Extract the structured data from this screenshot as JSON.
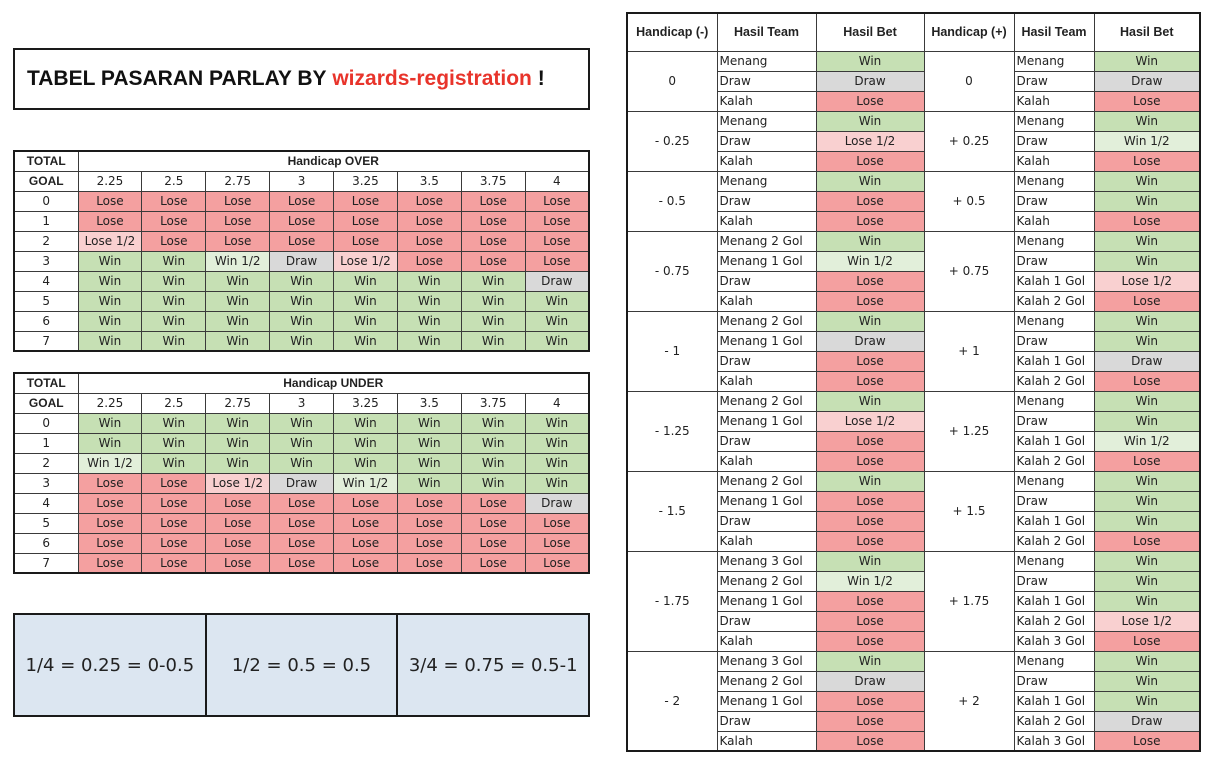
{
  "title": {
    "prefix": "TABEL PASARAN PARLAY BY",
    "brand": "wizards-registration",
    "suffix": "!"
  },
  "colors": {
    "win": "#c6e0b4",
    "lose": "#f4a0a0",
    "draw": "#d9d9d9",
    "win_half": "#e2efda",
    "lose_half": "#f9d0d0",
    "brand": "#e8342b"
  },
  "over_table": {
    "corner_top": "TOTAL",
    "corner_bottom": "GOAL",
    "header": "Handicap OVER",
    "columns": [
      "2.25",
      "2.5",
      "2.75",
      "3",
      "3.25",
      "3.5",
      "3.75",
      "4"
    ],
    "rows": [
      {
        "goal": "0",
        "cells": [
          "Lose",
          "Lose",
          "Lose",
          "Lose",
          "Lose",
          "Lose",
          "Lose",
          "Lose"
        ]
      },
      {
        "goal": "1",
        "cells": [
          "Lose",
          "Lose",
          "Lose",
          "Lose",
          "Lose",
          "Lose",
          "Lose",
          "Lose"
        ]
      },
      {
        "goal": "2",
        "cells": [
          "Lose 1/2",
          "Lose",
          "Lose",
          "Lose",
          "Lose",
          "Lose",
          "Lose",
          "Lose"
        ]
      },
      {
        "goal": "3",
        "cells": [
          "Win",
          "Win",
          "Win 1/2",
          "Draw",
          "Lose 1/2",
          "Lose",
          "Lose",
          "Lose"
        ]
      },
      {
        "goal": "4",
        "cells": [
          "Win",
          "Win",
          "Win",
          "Win",
          "Win",
          "Win",
          "Win",
          "Draw"
        ]
      },
      {
        "goal": "5",
        "cells": [
          "Win",
          "Win",
          "Win",
          "Win",
          "Win",
          "Win",
          "Win",
          "Win"
        ]
      },
      {
        "goal": "6",
        "cells": [
          "Win",
          "Win",
          "Win",
          "Win",
          "Win",
          "Win",
          "Win",
          "Win"
        ]
      },
      {
        "goal": "7",
        "cells": [
          "Win",
          "Win",
          "Win",
          "Win",
          "Win",
          "Win",
          "Win",
          "Win"
        ]
      }
    ]
  },
  "under_table": {
    "corner_top": "TOTAL",
    "corner_bottom": "GOAL",
    "header": "Handicap UNDER",
    "columns": [
      "2.25",
      "2.5",
      "2.75",
      "3",
      "3.25",
      "3.5",
      "3.75",
      "4"
    ],
    "rows": [
      {
        "goal": "0",
        "cells": [
          "Win",
          "Win",
          "Win",
          "Win",
          "Win",
          "Win",
          "Win",
          "Win"
        ]
      },
      {
        "goal": "1",
        "cells": [
          "Win",
          "Win",
          "Win",
          "Win",
          "Win",
          "Win",
          "Win",
          "Win"
        ]
      },
      {
        "goal": "2",
        "cells": [
          "Win 1/2",
          "Win",
          "Win",
          "Win",
          "Win",
          "Win",
          "Win",
          "Win"
        ]
      },
      {
        "goal": "3",
        "cells": [
          "Lose",
          "Lose",
          "Lose 1/2",
          "Draw",
          "Win 1/2",
          "Win",
          "Win",
          "Win"
        ]
      },
      {
        "goal": "4",
        "cells": [
          "Lose",
          "Lose",
          "Lose",
          "Lose",
          "Lose",
          "Lose",
          "Lose",
          "Draw"
        ]
      },
      {
        "goal": "5",
        "cells": [
          "Lose",
          "Lose",
          "Lose",
          "Lose",
          "Lose",
          "Lose",
          "Lose",
          "Lose"
        ]
      },
      {
        "goal": "6",
        "cells": [
          "Lose",
          "Lose",
          "Lose",
          "Lose",
          "Lose",
          "Lose",
          "Lose",
          "Lose"
        ]
      },
      {
        "goal": "7",
        "cells": [
          "Lose",
          "Lose",
          "Lose",
          "Lose",
          "Lose",
          "Lose",
          "Lose",
          "Lose"
        ]
      }
    ]
  },
  "ratios": [
    "1/4 = 0.25 = 0-0.5",
    "1/2 = 0.5 = 0.5",
    "3/4 = 0.75 = 0.5-1"
  ],
  "handicap_table": {
    "headers": [
      "Handicap (-)",
      "Hasil Team",
      "Hasil Bet",
      "Handicap (+)",
      "Hasil Team",
      "Hasil Bet"
    ],
    "groups": [
      {
        "minus": "0",
        "plus": "0",
        "rows": [
          {
            "lt": "Menang",
            "lb": "Win",
            "rt": "Menang",
            "rb": "Win"
          },
          {
            "lt": "Draw",
            "lb": "Draw",
            "rt": "Draw",
            "rb": "Draw"
          },
          {
            "lt": "Kalah",
            "lb": "Lose",
            "rt": "Kalah",
            "rb": "Lose"
          }
        ]
      },
      {
        "minus": "- 0.25",
        "plus": "+ 0.25",
        "rows": [
          {
            "lt": "Menang",
            "lb": "Win",
            "rt": "Menang",
            "rb": "Win"
          },
          {
            "lt": "Draw",
            "lb": "Lose 1/2",
            "rt": "Draw",
            "rb": "Win 1/2"
          },
          {
            "lt": "Kalah",
            "lb": "Lose",
            "rt": "Kalah",
            "rb": "Lose"
          }
        ]
      },
      {
        "minus": "- 0.5",
        "plus": "+ 0.5",
        "rows": [
          {
            "lt": "Menang",
            "lb": "Win",
            "rt": "Menang",
            "rb": "Win"
          },
          {
            "lt": "Draw",
            "lb": "Lose",
            "rt": "Draw",
            "rb": "Win"
          },
          {
            "lt": "Kalah",
            "lb": "Lose",
            "rt": "Kalah",
            "rb": "Lose"
          }
        ]
      },
      {
        "minus": "- 0.75",
        "plus": "+ 0.75",
        "rows": [
          {
            "lt": "Menang 2 Gol",
            "lb": "Win",
            "rt": "Menang",
            "rb": "Win"
          },
          {
            "lt": "Menang 1 Gol",
            "lb": "Win 1/2",
            "rt": "Draw",
            "rb": "Win"
          },
          {
            "lt": "Draw",
            "lb": "Lose",
            "rt": "Kalah 1 Gol",
            "rb": "Lose 1/2"
          },
          {
            "lt": "Kalah",
            "lb": "Lose",
            "rt": "Kalah 2 Gol",
            "rb": "Lose"
          }
        ]
      },
      {
        "minus": "- 1",
        "plus": "+ 1",
        "rows": [
          {
            "lt": "Menang 2 Gol",
            "lb": "Win",
            "rt": "Menang",
            "rb": "Win"
          },
          {
            "lt": "Menang 1 Gol",
            "lb": "Draw",
            "rt": "Draw",
            "rb": "Win"
          },
          {
            "lt": "Draw",
            "lb": "Lose",
            "rt": "Kalah 1 Gol",
            "rb": "Draw"
          },
          {
            "lt": "Kalah",
            "lb": "Lose",
            "rt": "Kalah 2 Gol",
            "rb": "Lose"
          }
        ]
      },
      {
        "minus": "- 1.25",
        "plus": "+ 1.25",
        "rows": [
          {
            "lt": "Menang 2 Gol",
            "lb": "Win",
            "rt": "Menang",
            "rb": "Win"
          },
          {
            "lt": "Menang 1 Gol",
            "lb": "Lose 1/2",
            "rt": "Draw",
            "rb": "Win"
          },
          {
            "lt": "Draw",
            "lb": "Lose",
            "rt": "Kalah 1 Gol",
            "rb": "Win 1/2"
          },
          {
            "lt": "Kalah",
            "lb": "Lose",
            "rt": "Kalah 2 Gol",
            "rb": "Lose"
          }
        ]
      },
      {
        "minus": "- 1.5",
        "plus": "+ 1.5",
        "rows": [
          {
            "lt": "Menang 2 Gol",
            "lb": "Win",
            "rt": "Menang",
            "rb": "Win"
          },
          {
            "lt": "Menang 1 Gol",
            "lb": "Lose",
            "rt": "Draw",
            "rb": "Win"
          },
          {
            "lt": "Draw",
            "lb": "Lose",
            "rt": "Kalah 1 Gol",
            "rb": "Win"
          },
          {
            "lt": "Kalah",
            "lb": "Lose",
            "rt": "Kalah 2 Gol",
            "rb": "Lose"
          }
        ]
      },
      {
        "minus": "- 1.75",
        "plus": "+ 1.75",
        "rows": [
          {
            "lt": "Menang 3 Gol",
            "lb": "Win",
            "rt": "Menang",
            "rb": "Win"
          },
          {
            "lt": "Menang 2 Gol",
            "lb": "Win 1/2",
            "rt": "Draw",
            "rb": "Win"
          },
          {
            "lt": "Menang 1 Gol",
            "lb": "Lose",
            "rt": "Kalah 1 Gol",
            "rb": "Win"
          },
          {
            "lt": "Draw",
            "lb": "Lose",
            "rt": "Kalah 2 Gol",
            "rb": "Lose 1/2"
          },
          {
            "lt": "Kalah",
            "lb": "Lose",
            "rt": "Kalah 3 Gol",
            "rb": "Lose"
          }
        ]
      },
      {
        "minus": "- 2",
        "plus": "+ 2",
        "rows": [
          {
            "lt": "Menang 3 Gol",
            "lb": "Win",
            "rt": "Menang",
            "rb": "Win"
          },
          {
            "lt": "Menang 2 Gol",
            "lb": "Draw",
            "rt": "Draw",
            "rb": "Win"
          },
          {
            "lt": "Menang 1 Gol",
            "lb": "Lose",
            "rt": "Kalah 1 Gol",
            "rb": "Win"
          },
          {
            "lt": "Draw",
            "lb": "Lose",
            "rt": "Kalah 2 Gol",
            "rb": "Draw"
          },
          {
            "lt": "Kalah",
            "lb": "Lose",
            "rt": "Kalah 3 Gol",
            "rb": "Lose"
          }
        ]
      }
    ]
  }
}
